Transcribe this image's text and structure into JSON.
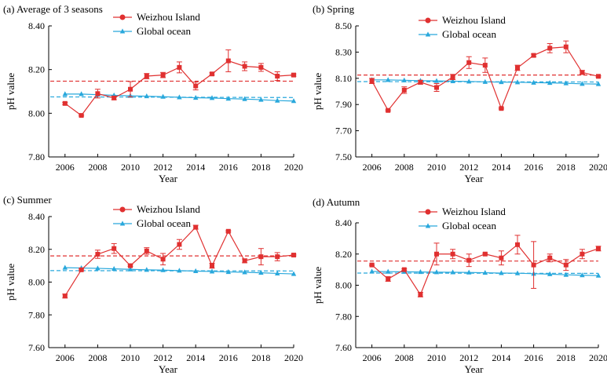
{
  "colors": {
    "weizhou": "#e03030",
    "global": "#29a8dc",
    "axis": "#000000"
  },
  "chart_data": [
    {
      "type": "line",
      "title": "(a) Average of 3 seasons",
      "xlabel": "Year",
      "ylabel": "pH value",
      "xlim": [
        2005,
        2020
      ],
      "ylim": [
        7.8,
        8.4
      ],
      "xticks": [
        2006,
        2008,
        2010,
        2012,
        2014,
        2016,
        2018,
        2020
      ],
      "yticks": [
        7.8,
        8.0,
        8.2,
        8.4
      ],
      "ytick_labels": [
        "7.80",
        "8.00",
        "8.20",
        "8.40"
      ],
      "legend_position": "top-center",
      "series": [
        {
          "name": "Weizhou Island",
          "x": [
            2006,
            2007,
            2008,
            2009,
            2010,
            2011,
            2012,
            2013,
            2014,
            2015,
            2016,
            2017,
            2018,
            2019,
            2020
          ],
          "values": [
            8.045,
            7.99,
            8.09,
            8.07,
            8.11,
            8.17,
            8.175,
            8.21,
            8.125,
            8.18,
            8.24,
            8.215,
            8.21,
            8.17,
            8.175
          ],
          "error": [
            0.005,
            0.003,
            0.02,
            0.008,
            0.035,
            0.012,
            0.012,
            0.025,
            0.018,
            0.005,
            0.05,
            0.02,
            0.018,
            0.02,
            0.005
          ],
          "mean_line": 8.147
        },
        {
          "name": "Global ocean",
          "x": [
            2006,
            2007,
            2008,
            2009,
            2010,
            2011,
            2012,
            2013,
            2014,
            2015,
            2016,
            2017,
            2018,
            2019,
            2020
          ],
          "values": [
            8.088,
            8.088,
            8.085,
            8.082,
            8.08,
            8.078,
            8.076,
            8.073,
            8.071,
            8.07,
            8.067,
            8.065,
            8.062,
            8.058,
            8.056
          ],
          "trend_line": [
            8.075,
            8.072
          ]
        }
      ]
    },
    {
      "type": "line",
      "title": "(b) Spring",
      "xlabel": "Year",
      "ylabel": "pH value",
      "xlim": [
        2005,
        2020
      ],
      "ylim": [
        7.5,
        8.5
      ],
      "xticks": [
        2006,
        2008,
        2010,
        2012,
        2014,
        2016,
        2018,
        2020
      ],
      "yticks": [
        7.5,
        7.7,
        7.9,
        8.1,
        8.3,
        8.5
      ],
      "ytick_labels": [
        "7.50",
        "7.70",
        "7.90",
        "8.10",
        "8.30",
        "8.50"
      ],
      "legend_position": "top-center",
      "series": [
        {
          "name": "Weizhou Island",
          "x": [
            2006,
            2007,
            2008,
            2009,
            2010,
            2011,
            2012,
            2013,
            2014,
            2015,
            2016,
            2017,
            2018,
            2019,
            2020
          ],
          "values": [
            8.08,
            7.855,
            8.01,
            8.07,
            8.03,
            8.11,
            8.22,
            8.2,
            7.87,
            8.18,
            8.275,
            8.33,
            8.34,
            8.145,
            8.115
          ],
          "error": [
            0.02,
            0.005,
            0.025,
            0.015,
            0.03,
            0.02,
            0.045,
            0.055,
            0.005,
            0.02,
            0.01,
            0.035,
            0.045,
            0.015,
            0.005
          ],
          "mean_line": 8.125
        },
        {
          "name": "Global ocean",
          "x": [
            2006,
            2007,
            2008,
            2009,
            2010,
            2011,
            2012,
            2013,
            2014,
            2015,
            2016,
            2017,
            2018,
            2019,
            2020
          ],
          "values": [
            8.088,
            8.088,
            8.085,
            8.082,
            8.08,
            8.078,
            8.076,
            8.073,
            8.071,
            8.07,
            8.067,
            8.065,
            8.062,
            8.058,
            8.056
          ],
          "trend_line": [
            8.075,
            8.072
          ]
        }
      ]
    },
    {
      "type": "line",
      "title": "(c) Summer",
      "xlabel": "Year",
      "ylabel": "pH value",
      "xlim": [
        2005,
        2020
      ],
      "ylim": [
        7.6,
        8.4
      ],
      "xticks": [
        2006,
        2008,
        2010,
        2012,
        2014,
        2016,
        2018,
        2020
      ],
      "yticks": [
        7.6,
        7.8,
        8.0,
        8.2,
        8.4
      ],
      "ytick_labels": [
        "7.60",
        "7.80",
        "8.00",
        "8.20",
        "8.40"
      ],
      "legend_position": "top-center",
      "series": [
        {
          "name": "Weizhou Island",
          "x": [
            2006,
            2007,
            2008,
            2009,
            2010,
            2011,
            2012,
            2013,
            2014,
            2015,
            2016,
            2017,
            2018,
            2019,
            2020
          ],
          "values": [
            7.915,
            8.075,
            8.17,
            8.205,
            8.1,
            8.19,
            8.14,
            8.23,
            8.335,
            8.1,
            8.31,
            8.13,
            8.155,
            8.155,
            8.165
          ],
          "error": [
            0.012,
            0.005,
            0.025,
            0.03,
            0.005,
            0.02,
            0.035,
            0.03,
            0.012,
            0.015,
            0.005,
            0.012,
            0.05,
            0.025,
            0.005
          ],
          "mean_line": 8.16
        },
        {
          "name": "Global ocean",
          "x": [
            2006,
            2007,
            2008,
            2009,
            2010,
            2011,
            2012,
            2013,
            2014,
            2015,
            2016,
            2017,
            2018,
            2019,
            2020
          ],
          "values": [
            8.088,
            8.086,
            8.084,
            8.081,
            8.078,
            8.075,
            8.073,
            8.07,
            8.067,
            8.065,
            8.062,
            8.06,
            8.057,
            8.053,
            8.05
          ],
          "trend_line": [
            8.07,
            8.068
          ]
        }
      ]
    },
    {
      "type": "line",
      "title": "(d) Autumn",
      "xlabel": "Year",
      "ylabel": "pH value",
      "xlim": [
        2005,
        2020
      ],
      "ylim": [
        7.6,
        8.4
      ],
      "xticks": [
        2006,
        2008,
        2010,
        2012,
        2014,
        2016,
        2018,
        2020
      ],
      "yticks": [
        7.6,
        7.8,
        8.0,
        8.2,
        8.4
      ],
      "ytick_labels": [
        "7.60",
        "7.80",
        "8.00",
        "8.20",
        "8.40"
      ],
      "legend_position": "top-center",
      "series": [
        {
          "name": "Weizhou Island",
          "x": [
            2006,
            2007,
            2008,
            2009,
            2010,
            2011,
            2012,
            2013,
            2014,
            2015,
            2016,
            2017,
            2018,
            2019,
            2020
          ],
          "values": [
            8.13,
            8.04,
            8.1,
            7.94,
            8.2,
            8.2,
            8.16,
            8.2,
            8.175,
            8.26,
            8.13,
            8.175,
            8.13,
            8.2,
            8.235
          ],
          "error": [
            0.005,
            0.015,
            0.005,
            0.015,
            0.07,
            0.03,
            0.04,
            0.005,
            0.045,
            0.06,
            0.15,
            0.025,
            0.035,
            0.03,
            0.015
          ],
          "mean_line": 8.155
        },
        {
          "name": "Global ocean",
          "x": [
            2006,
            2007,
            2008,
            2009,
            2010,
            2011,
            2012,
            2013,
            2014,
            2015,
            2016,
            2017,
            2018,
            2019,
            2020
          ],
          "values": [
            8.088,
            8.087,
            8.086,
            8.085,
            8.084,
            8.083,
            8.082,
            8.08,
            8.078,
            8.077,
            8.074,
            8.071,
            8.067,
            8.064,
            8.062
          ],
          "trend_line": [
            8.078,
            8.076
          ]
        }
      ]
    }
  ]
}
